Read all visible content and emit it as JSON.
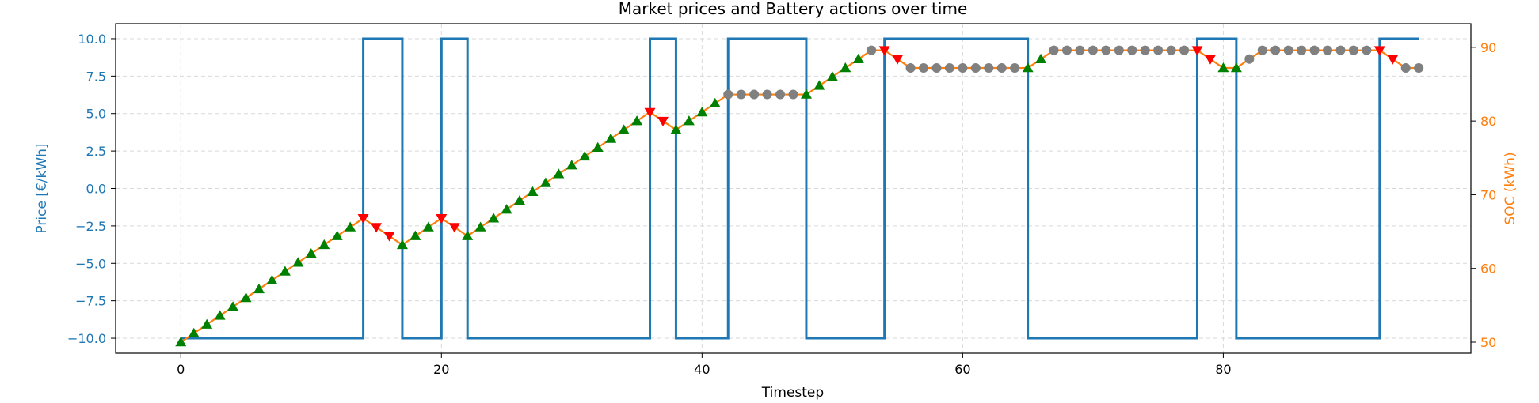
{
  "chart_data": {
    "type": "line",
    "title": "Market prices and Battery actions over time",
    "xlabel": "Timestep",
    "ylabel_left": "Price [€/kWh]",
    "ylabel_right": "SOC (kWh)",
    "xlim": [
      -5,
      99
    ],
    "ylim_left": [
      -11.0,
      11.0
    ],
    "ylim_right": [
      48.5,
      93.2
    ],
    "x_ticks": [
      0,
      20,
      40,
      60,
      80
    ],
    "x_tick_labels": [
      "0",
      "20",
      "40",
      "60",
      "80"
    ],
    "left_ticks": [
      -10.0,
      -7.5,
      -5.0,
      -2.5,
      0.0,
      2.5,
      5.0,
      7.5,
      10.0
    ],
    "left_tick_labels": [
      "−10.0",
      "−7.5",
      "−5.0",
      "−2.5",
      "0.0",
      "2.5",
      "5.0",
      "7.5",
      "10.0"
    ],
    "right_ticks": [
      50,
      60,
      70,
      80,
      90
    ],
    "right_tick_labels": [
      "50",
      "60",
      "70",
      "80",
      "90"
    ],
    "grid": true,
    "colors": {
      "price": "#1f77b4",
      "soc": "#ff7f0e",
      "charge_marker": "#008000",
      "discharge_marker": "#ff0000",
      "idle_marker": "#808080",
      "left_axis_text": "#1f77b4",
      "right_axis_text": "#ff7f0e"
    },
    "series": [
      {
        "name": "Price",
        "axis": "left",
        "style": "step-post",
        "segments": [
          {
            "x_start": 0,
            "x_end": 14,
            "value": -10
          },
          {
            "x_start": 14,
            "x_end": 17,
            "value": 10
          },
          {
            "x_start": 17,
            "x_end": 20,
            "value": -10
          },
          {
            "x_start": 20,
            "x_end": 22,
            "value": 10
          },
          {
            "x_start": 22,
            "x_end": 36,
            "value": -10
          },
          {
            "x_start": 36,
            "x_end": 38,
            "value": 10
          },
          {
            "x_start": 38,
            "x_end": 42,
            "value": -10
          },
          {
            "x_start": 42,
            "x_end": 48,
            "value": 10
          },
          {
            "x_start": 48,
            "x_end": 54,
            "value": -10
          },
          {
            "x_start": 54,
            "x_end": 65,
            "value": 10
          },
          {
            "x_start": 65,
            "x_end": 78,
            "value": -10
          },
          {
            "x_start": 78,
            "x_end": 81,
            "value": 10
          },
          {
            "x_start": 81,
            "x_end": 92,
            "value": -10
          },
          {
            "x_start": 92,
            "x_end": 95,
            "value": 10
          }
        ]
      },
      {
        "name": "SOC",
        "axis": "right",
        "x": [
          0,
          1,
          2,
          3,
          4,
          5,
          6,
          7,
          8,
          9,
          10,
          11,
          12,
          13,
          14,
          15,
          16,
          17,
          18,
          19,
          20,
          21,
          22,
          23,
          24,
          25,
          26,
          27,
          28,
          29,
          30,
          31,
          32,
          33,
          34,
          35,
          36,
          37,
          38,
          39,
          40,
          41,
          42,
          43,
          44,
          45,
          46,
          47,
          48,
          49,
          50,
          51,
          52,
          53,
          54,
          55,
          56,
          57,
          58,
          59,
          60,
          61,
          62,
          63,
          64,
          65,
          66,
          67,
          68,
          69,
          70,
          71,
          72,
          73,
          74,
          75,
          76,
          77,
          78,
          79,
          80,
          81,
          82,
          83,
          84,
          85,
          86,
          87,
          88,
          89,
          90,
          91,
          92,
          93,
          94,
          95
        ],
        "y": [
          50.0,
          51.2,
          52.4,
          53.6,
          54.8,
          56.0,
          57.2,
          58.4,
          59.6,
          60.8,
          62.0,
          63.2,
          64.4,
          65.6,
          66.8,
          65.6,
          64.4,
          63.2,
          64.4,
          65.6,
          66.8,
          65.6,
          64.4,
          65.6,
          66.8,
          68.0,
          69.2,
          70.4,
          71.6,
          72.8,
          74.0,
          75.2,
          76.4,
          77.6,
          78.8,
          80.0,
          81.2,
          80.0,
          78.8,
          80.0,
          81.2,
          82.4,
          83.6,
          83.6,
          83.6,
          83.6,
          83.6,
          83.6,
          83.6,
          84.8,
          86.0,
          87.2,
          88.4,
          89.6,
          89.6,
          88.4,
          87.2,
          87.2,
          87.2,
          87.2,
          87.2,
          87.2,
          87.2,
          87.2,
          87.2,
          87.2,
          88.4,
          89.6,
          89.6,
          89.6,
          89.6,
          89.6,
          89.6,
          89.6,
          89.6,
          89.6,
          89.6,
          89.6,
          89.6,
          88.4,
          87.2,
          87.2,
          88.4,
          89.6,
          89.6,
          89.6,
          89.6,
          89.6,
          89.6,
          89.6,
          89.6,
          89.6,
          89.6,
          88.4,
          87.2,
          87.2
        ],
        "actions": [
          "charge",
          "charge",
          "charge",
          "charge",
          "charge",
          "charge",
          "charge",
          "charge",
          "charge",
          "charge",
          "charge",
          "charge",
          "charge",
          "charge",
          "discharge",
          "discharge",
          "discharge",
          "charge",
          "charge",
          "charge",
          "discharge",
          "discharge",
          "charge",
          "charge",
          "charge",
          "charge",
          "charge",
          "charge",
          "charge",
          "charge",
          "charge",
          "charge",
          "charge",
          "charge",
          "charge",
          "charge",
          "discharge",
          "discharge",
          "charge",
          "charge",
          "charge",
          "charge",
          "idle",
          "idle",
          "idle",
          "idle",
          "idle",
          "idle",
          "charge",
          "charge",
          "charge",
          "charge",
          "charge",
          "idle",
          "discharge",
          "discharge",
          "idle",
          "idle",
          "idle",
          "idle",
          "idle",
          "idle",
          "idle",
          "idle",
          "idle",
          "charge",
          "charge",
          "idle",
          "idle",
          "idle",
          "idle",
          "idle",
          "idle",
          "idle",
          "idle",
          "idle",
          "idle",
          "idle",
          "discharge",
          "discharge",
          "charge",
          "charge",
          "idle",
          "idle",
          "idle",
          "idle",
          "idle",
          "idle",
          "idle",
          "idle",
          "idle",
          "idle",
          "discharge",
          "discharge",
          "idle",
          "idle"
        ]
      }
    ]
  }
}
